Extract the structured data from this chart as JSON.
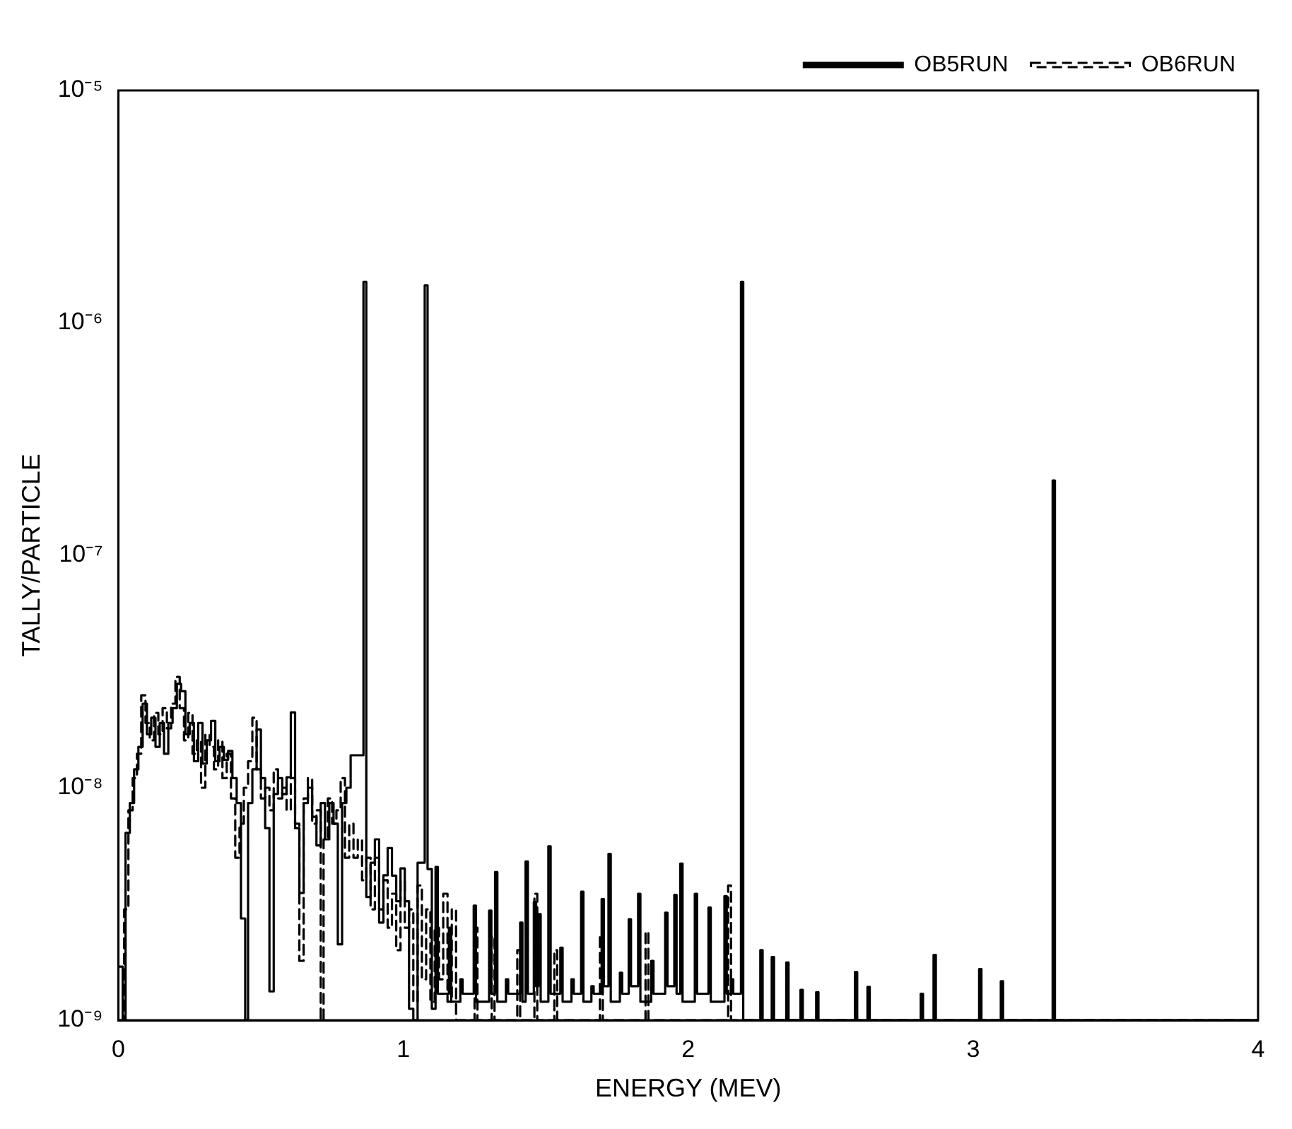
{
  "chart_data": {
    "type": "step",
    "xlabel": "ENERGY (MEV)",
    "ylabel": "TALLY/PARTICLE",
    "log": "y",
    "grid": false,
    "legend": "top right",
    "xlim": [
      0,
      4
    ],
    "xticks": [
      0,
      1,
      2,
      3,
      4
    ],
    "ylim": [
      1e-09,
      1e-05
    ],
    "yticks": [
      {
        "value": 1e-09,
        "label": "10⁻⁹"
      },
      {
        "value": 1e-08,
        "label": "10⁻⁸"
      },
      {
        "value": 1e-07,
        "label": "10⁻⁷"
      },
      {
        "value": 1e-06,
        "label": "10⁻⁶"
      },
      {
        "value": 1e-05,
        "label": "10⁻⁵"
      }
    ],
    "series": [
      {
        "name": "OB5RUN",
        "color": "#000000",
        "line_style": "solid",
        "x": [
          0,
          0.015,
          0.025,
          0.04,
          0.055,
          0.07,
          0.085,
          0.1,
          0.115,
          0.13,
          0.145,
          0.16,
          0.175,
          0.19,
          0.205,
          0.22,
          0.235,
          0.25,
          0.265,
          0.28,
          0.295,
          0.31,
          0.325,
          0.34,
          0.355,
          0.37,
          0.385,
          0.4,
          0.415,
          0.43,
          0.445,
          0.455,
          0.47,
          0.485,
          0.5,
          0.515,
          0.53,
          0.545,
          0.56,
          0.575,
          0.59,
          0.605,
          0.62,
          0.635,
          0.65,
          0.665,
          0.68,
          0.695,
          0.71,
          0.725,
          0.74,
          0.755,
          0.77,
          0.785,
          0.8,
          0.815,
          0.86,
          0.87,
          0.885,
          0.9,
          0.915,
          0.93,
          0.945,
          0.96,
          0.975,
          0.99,
          1.005,
          1.02,
          1.035,
          1.05,
          1.075,
          1.085,
          1.1,
          1.113,
          1.121,
          1.16,
          1.168,
          1.2,
          1.208,
          1.247,
          1.255,
          1.301,
          1.309,
          1.322,
          1.33,
          1.36,
          1.368,
          1.41,
          1.418,
          1.429,
          1.437,
          1.458,
          1.466,
          1.474,
          1.482,
          1.509,
          1.517,
          1.551,
          1.559,
          1.59,
          1.598,
          1.624,
          1.632,
          1.66,
          1.668,
          1.696,
          1.704,
          1.72,
          1.728,
          1.76,
          1.768,
          1.791,
          1.799,
          1.824,
          1.832,
          1.87,
          1.878,
          1.919,
          1.927,
          1.951,
          1.959,
          1.972,
          1.98,
          2.023,
          2.031,
          2.071,
          2.079,
          2.127,
          2.135,
          2.15,
          2.158,
          2.185,
          2.193,
          2.253,
          2.261,
          2.293,
          2.301,
          2.344,
          2.352,
          2.394,
          2.402,
          2.449,
          2.457,
          2.585,
          2.593,
          2.629,
          2.637,
          2.816,
          2.824,
          2.861,
          2.869,
          3.021,
          3.029,
          3.097,
          3.105,
          3.279,
          3.287,
          4
        ],
        "values": [
          1.7e-09,
          1e-09,
          6.4e-09,
          8.6e-09,
          1.2e-08,
          1.5e-08,
          2.3e-08,
          1.7e-08,
          2e-08,
          1.5e-08,
          1.9e-08,
          1.4e-08,
          1.9e-08,
          2.2e-08,
          2.8e-08,
          2.6e-08,
          1.7e-08,
          1.9e-08,
          1.3e-08,
          1.9e-08,
          1.27e-08,
          1.6e-08,
          1.94e-08,
          1.3e-08,
          1.5e-08,
          1.32e-08,
          1.44e-08,
          1.1e-08,
          8.6e-09,
          2.74e-09,
          1e-09,
          8.6e-09,
          1.2e-08,
          1.78e-08,
          1.1e-08,
          6.7e-09,
          1.33e-09,
          9.4e-09,
          1.1e-08,
          9.4e-09,
          1.11e-08,
          2.11e-08,
          6.7e-09,
          3.53e-09,
          8.6e-09,
          1e-08,
          7.5e-09,
          5.65e-09,
          8.6e-09,
          6e-09,
          8.6e-09,
          7e-09,
          2.12e-09,
          8.6e-09,
          1e-08,
          1.38e-08,
          1.5e-06,
          3.39e-09,
          4.76e-09,
          6e-09,
          2.63e-09,
          4.2e-09,
          5.5e-09,
          4.19e-09,
          3.25e-09,
          4.5e-09,
          3.25e-09,
          1.12e-09,
          1e-09,
          4.76e-09,
          1.45e-06,
          4.47e-09,
          1.12e-09,
          4.56e-09,
          1.3e-09,
          2.5e-09,
          1.2e-09,
          1.5e-09,
          1.3e-09,
          3.11e-09,
          1.2e-09,
          2.96e-09,
          1.3e-09,
          4.34e-09,
          1.2e-09,
          1.5e-09,
          1.3e-09,
          2.63e-09,
          1.2e-09,
          4.82e-09,
          1.3e-09,
          3.22e-09,
          1.4e-09,
          2.86e-09,
          1.2e-09,
          5.6e-09,
          1.3e-09,
          2.05e-09,
          1.2e-09,
          1.5e-09,
          1.3e-09,
          3.57e-09,
          1.2e-09,
          1.4e-09,
          1.3e-09,
          3.32e-09,
          1.4e-09,
          5.19e-09,
          1.2e-09,
          1.6e-09,
          1.3e-09,
          2.72e-09,
          1.4e-09,
          3.5e-09,
          1.2e-09,
          1.8e-09,
          1.3e-09,
          2.9e-09,
          1.4e-09,
          3.46e-09,
          1.3e-09,
          4.72e-09,
          1.2e-09,
          3.5e-09,
          1.3e-09,
          3.05e-09,
          1.2e-09,
          3.42e-09,
          1.3e-09,
          1.5e-09,
          1.3e-09,
          1.5e-06,
          1e-09,
          2e-09,
          1e-09,
          1.87e-09,
          1e-09,
          1.77e-09,
          1e-09,
          1.35e-09,
          1e-09,
          1.32e-09,
          1e-09,
          1.61e-09,
          1e-09,
          1.39e-09,
          1e-09,
          1.3e-09,
          1e-09,
          1.91e-09,
          1e-09,
          1.66e-09,
          1e-09,
          1.47e-09,
          1e-09,
          2.1e-07,
          1e-09,
          1e-09
        ]
      },
      {
        "name": "OB6RUN",
        "color": "#000000",
        "line_style": "dashed",
        "x": [
          0,
          0.02,
          0.035,
          0.05,
          0.065,
          0.08,
          0.095,
          0.11,
          0.125,
          0.14,
          0.155,
          0.17,
          0.185,
          0.2,
          0.215,
          0.23,
          0.245,
          0.26,
          0.275,
          0.29,
          0.305,
          0.32,
          0.335,
          0.35,
          0.365,
          0.38,
          0.395,
          0.41,
          0.425,
          0.44,
          0.455,
          0.47,
          0.485,
          0.5,
          0.515,
          0.53,
          0.545,
          0.56,
          0.575,
          0.59,
          0.605,
          0.62,
          0.635,
          0.65,
          0.665,
          0.68,
          0.695,
          0.71,
          0.72,
          0.735,
          0.75,
          0.765,
          0.78,
          0.795,
          0.81,
          0.825,
          0.84,
          0.855,
          0.87,
          0.885,
          0.9,
          0.915,
          0.93,
          0.945,
          0.96,
          0.975,
          0.99,
          1.005,
          1.02,
          1.035,
          1.05,
          1.065,
          1.08,
          1.095,
          1.11,
          1.125,
          1.14,
          1.155,
          1.17,
          1.185,
          1.25,
          1.26,
          1.31,
          1.32,
          1.4,
          1.41,
          1.46,
          1.47,
          1.53,
          1.54,
          1.69,
          1.7,
          1.85,
          1.86,
          2.14,
          2.15,
          4
        ],
        "values": [
          1e-09,
          3e-09,
          8e-09,
          1.1e-08,
          1.4e-08,
          2.5e-08,
          1.9e-08,
          1.6e-08,
          2.1e-08,
          1.7e-08,
          2.2e-08,
          1.8e-08,
          2.3e-08,
          3e-08,
          2.2e-08,
          1.6e-08,
          2.1e-08,
          1.4e-08,
          1.6e-08,
          1e-08,
          1.7e-08,
          1.5e-08,
          1.2e-08,
          1.6e-08,
          1.1e-08,
          1.4e-08,
          9e-09,
          5e-09,
          7e-09,
          1e-08,
          1.3e-08,
          2e-08,
          1.2e-08,
          9e-09,
          1e-08,
          8e-09,
          1.2e-08,
          9e-09,
          1e-08,
          8e-09,
          1.1e-08,
          7e-09,
          1.8e-09,
          9e-09,
          1.1e-08,
          7e-09,
          8e-09,
          1e-09,
          6e-09,
          9e-09,
          7e-09,
          8e-09,
          1.1e-08,
          5e-09,
          7e-09,
          5e-09,
          6e-09,
          4e-09,
          5e-09,
          3e-09,
          5e-09,
          3e-09,
          4e-09,
          2.5e-09,
          3.5e-09,
          2e-09,
          4e-09,
          2.5e-09,
          3e-09,
          1.2e-09,
          3.8e-09,
          1.5e-09,
          3e-09,
          1.2e-09,
          2.5e-09,
          1.5e-09,
          3.5e-09,
          1.2e-09,
          3e-09,
          1e-09,
          2.5e-09,
          1e-09,
          2.3e-09,
          1e-09,
          2e-09,
          1e-09,
          3.5e-09,
          1e-09,
          2e-09,
          1e-09,
          2.3e-09,
          1e-09,
          2.4e-09,
          1e-09,
          3.8e-09,
          1e-09,
          1e-09
        ]
      }
    ]
  }
}
